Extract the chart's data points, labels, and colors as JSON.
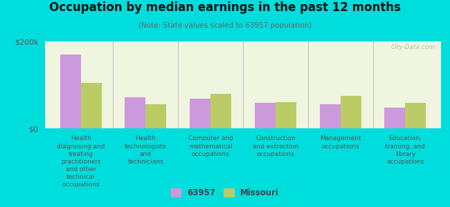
{
  "title": "Occupation by median earnings in the past 12 months",
  "subtitle": "(Note: State values scaled to 63957 population)",
  "categories": [
    "Health\ndiagnosing and\ntreating\npractitioners\nand other\ntechnical\noccupations",
    "Health\ntechnologists\nand\ntechnicians",
    "Computer and\nmathematical\noccupations",
    "Construction\nand extraction\noccupations",
    "Management\noccupations",
    "Education,\ntraining, and\nlibrary\noccupations"
  ],
  "values_63957": [
    170000,
    72000,
    68000,
    58000,
    55000,
    48000
  ],
  "values_missouri": [
    105000,
    55000,
    80000,
    60000,
    75000,
    58000
  ],
  "color_63957": "#cc99dd",
  "color_missouri": "#bbcc66",
  "background_chart": "#f0f5e0",
  "background_outer": "#00dddd",
  "ymax": 200000,
  "yticks": [
    0,
    200000
  ],
  "ytick_labels": [
    "$0",
    "$200k"
  ],
  "legend_label_1": "63957",
  "legend_label_2": "Missouri",
  "watermark": "City-Data.com"
}
